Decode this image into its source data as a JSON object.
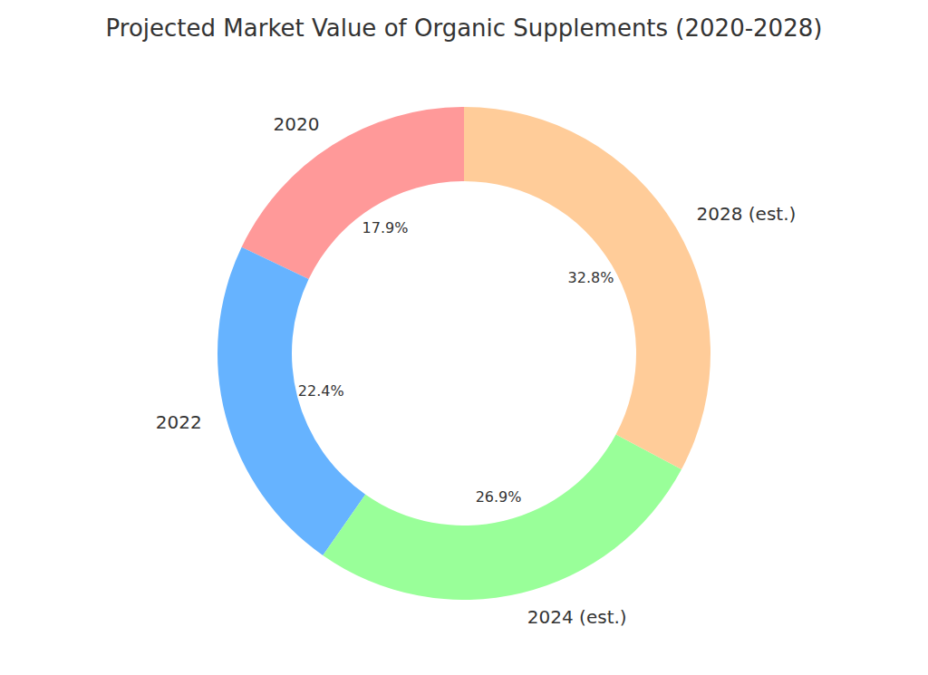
{
  "chart_data": {
    "type": "pie",
    "title": "Projected Market Value of Organic Supplements (2020-2028)",
    "categories": [
      "2020",
      "2022",
      "2024 (est.)",
      "2028 (est.)"
    ],
    "values": [
      17.9,
      22.4,
      26.9,
      32.8
    ],
    "value_labels": [
      "17.9%",
      "22.4%",
      "26.9%",
      "32.8%"
    ],
    "colors": [
      "#ff9999",
      "#66b3ff",
      "#99ff99",
      "#ffcc99"
    ],
    "data_labels": true
  }
}
